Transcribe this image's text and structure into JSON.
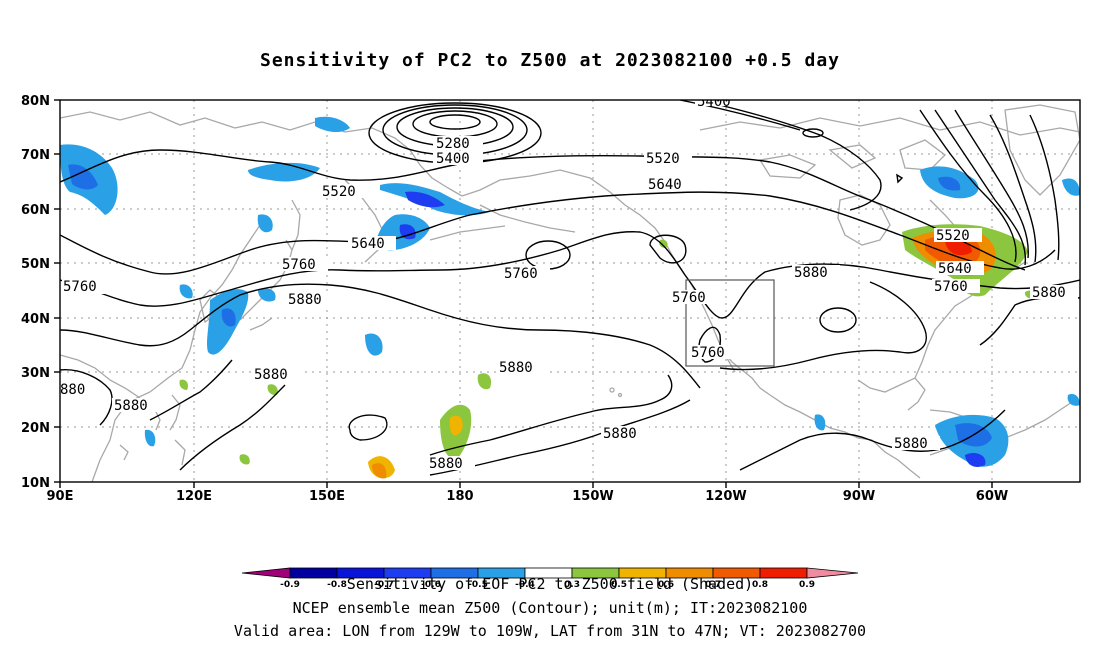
{
  "title": "Sensitivity of PC2 to Z500 at 2023082100 +0.5 day",
  "lat_labels": [
    "80N",
    "70N",
    "60N",
    "50N",
    "40N",
    "30N",
    "20N",
    "10N"
  ],
  "lon_labels": [
    "90E",
    "120E",
    "150E",
    "180",
    "150W",
    "120W",
    "90W",
    "60W"
  ],
  "contour_labels": {
    "c5400_top": "5400",
    "c5280": "5280",
    "c5400": "5400",
    "c5520_a": "5520",
    "c5520_b": "5520",
    "c5640_a": "5640",
    "c5640_b": "5640",
    "c5760_a": "5760",
    "c5760_b": "5760",
    "c5760_c": "5760",
    "c5760_d": "5760",
    "c5760_e": "5760",
    "c5880_a": "5880",
    "c5880_b": "5880",
    "c5880_c": "5880",
    "c5880_d": "5880",
    "c5880_e": "5880",
    "c5880_f": "5880",
    "c5880_g": "5880",
    "c5880_h": "5880",
    "c5880_i": "5880",
    "c880": "880",
    "ne_5520": "5520",
    "ne_5640": "5640",
    "ne_5760": "5760"
  },
  "colorbar_labels": [
    "-0.9",
    "-0.8",
    "-0.7",
    "-0.6",
    "-0.5",
    "-0.4",
    "-0.3",
    "0.3",
    "0.4",
    "0.5",
    "0.6",
    "0.7",
    "0.8",
    "0.9"
  ],
  "colorbar_colors": [
    "#a0007a",
    "#0000a0",
    "#0a14d8",
    "#1e3cf0",
    "#1e6ee6",
    "#2aa0e6",
    "#1ed2f0",
    "#ffffff",
    "#8cc63e",
    "#f0b400",
    "#f08c00",
    "#f05a00",
    "#f01e00",
    "#e60000",
    "#f08ca0"
  ],
  "caption_line1": "Sensitivity of EOF PC2 to Z500 field (Shaded)",
  "caption_line2": "NCEP ensemble mean Z500 (Contour); unit(m); IT:2023082100",
  "caption_line3": "Valid area: LON from 129W to 109W, LAT from 31N to 47N; VT: 2023082700"
}
